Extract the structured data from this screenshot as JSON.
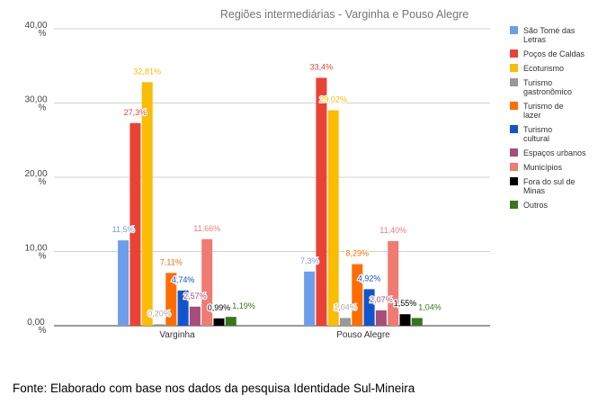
{
  "chart_data": {
    "type": "bar",
    "title": "Regiões intermediárias - Varginha e Pouso Alegre",
    "categories": [
      "Varginha",
      "Pouso Alegre"
    ],
    "ylim": [
      0,
      40
    ],
    "yticks": [
      "0,00 %",
      "10,00 %",
      "20,00 %",
      "30,00 %",
      "40,00 %"
    ],
    "grid": true,
    "legend": "right",
    "series": [
      {
        "name": "São Tomé das Letras",
        "color": "#6d9eeb",
        "values": [
          11.5,
          7.3
        ],
        "labels": [
          "11,5%",
          "7,3%"
        ]
      },
      {
        "name": "Poços de Caldas",
        "color": "#ea4335",
        "values": [
          27.3,
          33.4
        ],
        "labels": [
          "27,3%",
          "33,4%"
        ]
      },
      {
        "name": "Ecoturismo",
        "color": "#fbbc04",
        "values": [
          32.81,
          29.02
        ],
        "labels": [
          "32,81%",
          "29,02%"
        ]
      },
      {
        "name": "Turismo gastronômico",
        "color": "#999999",
        "values": [
          0.2,
          1.04
        ],
        "labels": [
          "0,20%",
          "1,04%"
        ]
      },
      {
        "name": "Turismo de lazer",
        "color": "#ff6d01",
        "values": [
          7.11,
          8.29
        ],
        "labels": [
          "7,11%",
          "8,29%"
        ]
      },
      {
        "name": "Turismo cultural",
        "color": "#1155cc",
        "values": [
          4.74,
          4.92
        ],
        "labels": [
          "4,74%",
          "4,92%"
        ]
      },
      {
        "name": "Espaços urbanos",
        "color": "#a64d79",
        "values": [
          2.57,
          2.07
        ],
        "labels": [
          "2,57%",
          "2,07%"
        ]
      },
      {
        "name": "Municípios",
        "color": "#f07b72",
        "values": [
          11.66,
          11.4
        ],
        "labels": [
          "11,66%",
          "11,40%"
        ]
      },
      {
        "name": "Fora do sul de Minas",
        "color": "#000000",
        "values": [
          0.99,
          1.55
        ],
        "labels": [
          "0,99%",
          "1,55%"
        ]
      },
      {
        "name": "Outros",
        "color": "#38761d",
        "values": [
          1.19,
          1.04
        ],
        "labels": [
          "1,19%",
          "1,04%"
        ]
      }
    ]
  },
  "source": "Fonte: Elaborado com base nos dados da pesquisa Identidade Sul-Mineira"
}
